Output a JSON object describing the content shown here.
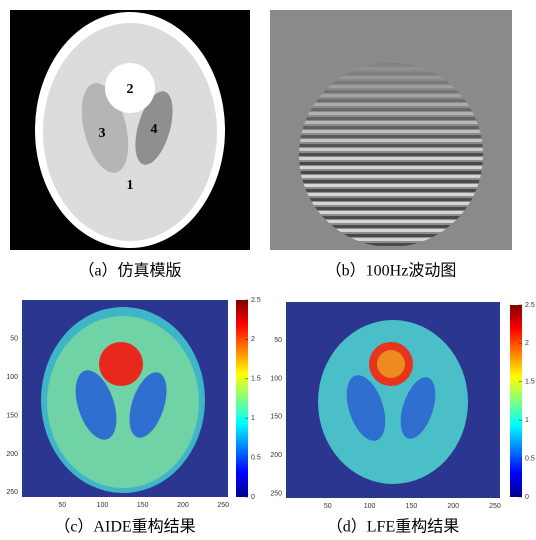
{
  "panels": [
    {
      "caption": "（a）仿真模版",
      "labels": [
        "1",
        "2",
        "3",
        "4"
      ]
    },
    {
      "caption": "（b）100Hz波动图"
    },
    {
      "caption": "（c）AIDE重构结果",
      "xlim": [
        0,
        256
      ],
      "ylim": [
        0,
        256
      ],
      "xticks": [
        50,
        100,
        150,
        200,
        250
      ],
      "yticks": [
        50,
        100,
        150,
        200,
        250
      ],
      "colorbar_lim": [
        0,
        2.5
      ],
      "colorbar_ticks": [
        0,
        0.5,
        1,
        1.5,
        2,
        2.5
      ]
    },
    {
      "caption": "（d）LFE重构结果",
      "xlim": [
        0,
        256
      ],
      "ylim": [
        0,
        256
      ],
      "xticks": [
        50,
        100,
        150,
        200,
        250
      ],
      "yticks": [
        50,
        100,
        150,
        200,
        250
      ],
      "colorbar_lim": [
        0,
        2.5
      ],
      "colorbar_ticks": [
        0,
        0.5,
        1,
        1.5,
        2,
        2.5
      ]
    }
  ]
}
